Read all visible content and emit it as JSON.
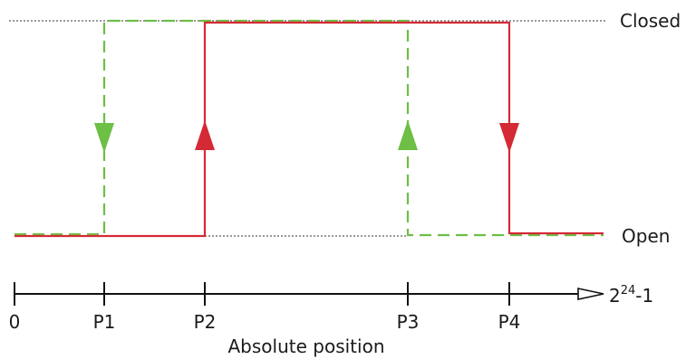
{
  "diagram": {
    "levels": {
      "closed": "Closed",
      "open": "Open"
    },
    "axis": {
      "title": "Absolute position",
      "ticks": [
        "0",
        "P1",
        "P2",
        "P3",
        "P4"
      ],
      "end_label_base": "2",
      "end_label_exponent": "24",
      "end_label_suffix": "-1"
    },
    "traces": {
      "solid_color": "#d42a35",
      "dashed_color": "#6dbf45"
    }
  }
}
